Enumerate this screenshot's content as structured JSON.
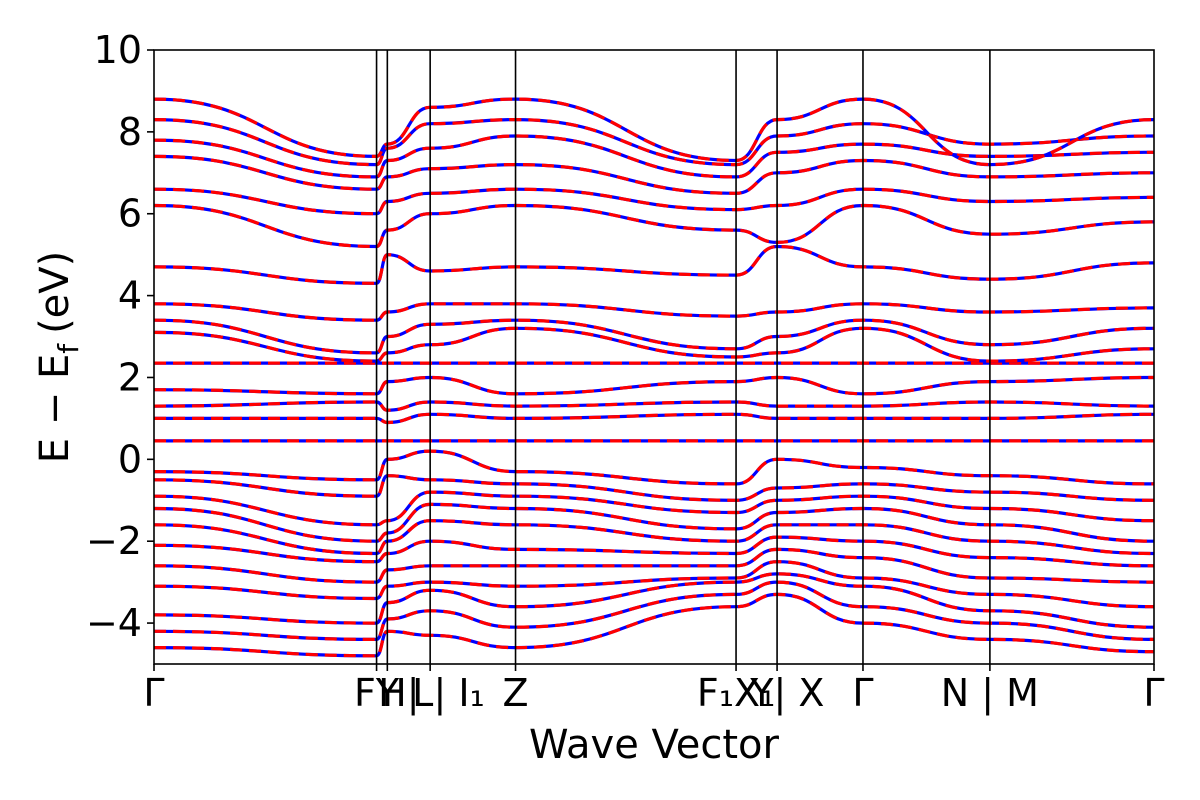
{
  "chart_data": {
    "type": "line",
    "title": "",
    "xlabel": "Wave Vector",
    "ylabel_main": "E − E",
    "ylabel_sub": "f",
    "ylabel_unit": "(eV)",
    "ylim": [
      -5,
      10
    ],
    "yticks": [
      {
        "value": -4,
        "label": "−4"
      },
      {
        "value": -2,
        "label": "−2"
      },
      {
        "value": 0,
        "label": "0"
      },
      {
        "value": 2,
        "label": "2"
      },
      {
        "value": 4,
        "label": "4"
      },
      {
        "value": 6,
        "label": "6"
      },
      {
        "value": 8,
        "label": "8"
      },
      {
        "value": 10,
        "label": "10"
      }
    ],
    "xlim": [
      0,
      3.9
    ],
    "kpoints": [
      {
        "pos": 0.0,
        "label": "Γ"
      },
      {
        "pos": 0.868,
        "label": "F"
      },
      {
        "pos": 0.91,
        "label": "Y"
      },
      {
        "pos": 1.077,
        "label": "H"
      },
      {
        "pos": 1.41,
        "label": "Z"
      },
      {
        "pos": 2.27,
        "label": "F₁"
      },
      {
        "pos": 2.43,
        "label": "Y"
      },
      {
        "pos": 2.765,
        "label": "Γ"
      },
      {
        "pos": 3.26,
        "label": "N"
      },
      {
        "pos": 3.9,
        "label": "Γ"
      }
    ],
    "tick_labels": [
      {
        "pos": 0.0,
        "text": "Γ"
      },
      {
        "pos": 0.868,
        "text": "FY"
      },
      {
        "pos": 0.955,
        "text": "H|"
      },
      {
        "pos": 1.048,
        "text": "L"
      },
      {
        "pos": 1.19,
        "text": "| I₁"
      },
      {
        "pos": 1.41,
        "text": "Z"
      },
      {
        "pos": 2.27,
        "text": "F₁X₁"
      },
      {
        "pos": 2.47,
        "text": "Y| X"
      },
      {
        "pos": 2.765,
        "text": "Γ"
      },
      {
        "pos": 3.26,
        "text": "N | M"
      },
      {
        "pos": 3.9,
        "text": "Γ"
      }
    ],
    "series": [
      {
        "color": "#0000ff",
        "style": "solid"
      },
      {
        "color": "#ff0000",
        "style": "dashed"
      }
    ],
    "bands": [
      [
        -4.6,
        -4.8,
        -4.2,
        -4.3,
        -4.6,
        -3.6,
        -3.3,
        -4.0,
        -4.4,
        -4.7,
        -4.9
      ],
      [
        -4.2,
        -4.4,
        -3.9,
        -3.7,
        -4.1,
        -3.3,
        -3.0,
        -3.6,
        -4.0,
        -4.4,
        -4.5
      ],
      [
        -3.8,
        -4.0,
        -3.5,
        -3.2,
        -3.6,
        -3.0,
        -2.8,
        -3.1,
        -3.7,
        -4.1,
        -4.0
      ],
      [
        -3.1,
        -3.4,
        -3.1,
        -3.0,
        -3.1,
        -2.9,
        -2.5,
        -2.9,
        -3.3,
        -3.6,
        -3.2
      ],
      [
        -2.6,
        -3.0,
        -2.7,
        -2.6,
        -2.6,
        -2.6,
        -2.2,
        -2.4,
        -2.9,
        -3.0,
        -2.6
      ],
      [
        -2.1,
        -2.5,
        -2.3,
        -2.0,
        -2.2,
        -2.3,
        -1.9,
        -2.0,
        -2.4,
        -2.6,
        -2.2
      ],
      [
        -1.6,
        -2.3,
        -2.0,
        -1.5,
        -1.6,
        -2.0,
        -1.6,
        -1.6,
        -2.0,
        -2.3,
        -1.7
      ],
      [
        -1.2,
        -2.0,
        -1.8,
        -1.1,
        -1.2,
        -1.7,
        -1.3,
        -1.2,
        -1.6,
        -2.0,
        -1.2
      ],
      [
        -0.9,
        -1.6,
        -1.5,
        -0.8,
        -0.9,
        -1.3,
        -1.0,
        -0.9,
        -1.2,
        -1.5,
        -0.9
      ],
      [
        -0.5,
        -0.9,
        -0.4,
        -0.5,
        -0.6,
        -1.0,
        -0.7,
        -0.6,
        -0.8,
        -1.0,
        -0.5
      ],
      [
        -0.3,
        -0.5,
        0.0,
        0.2,
        -0.3,
        -0.6,
        0.0,
        -0.2,
        -0.4,
        -0.6,
        -0.3
      ],
      [
        0.45,
        0.45,
        0.45,
        0.45,
        0.45,
        0.45,
        0.45,
        0.45,
        0.45,
        0.45,
        0.45
      ],
      [
        1.0,
        1.0,
        0.9,
        1.1,
        1.0,
        1.1,
        1.0,
        1.0,
        1.0,
        1.1,
        1.0
      ],
      [
        1.3,
        1.4,
        1.2,
        1.4,
        1.3,
        1.4,
        1.3,
        1.3,
        1.4,
        1.3,
        1.3
      ],
      [
        1.7,
        1.6,
        1.9,
        2.0,
        1.6,
        1.9,
        2.0,
        1.6,
        1.9,
        2.0,
        1.7
      ],
      [
        2.35,
        2.35,
        2.35,
        2.35,
        2.35,
        2.35,
        2.35,
        2.35,
        2.35,
        2.35,
        2.35
      ],
      [
        3.1,
        2.4,
        2.6,
        2.8,
        3.2,
        2.5,
        2.6,
        3.2,
        2.4,
        2.7,
        3.1
      ],
      [
        3.4,
        2.6,
        3.0,
        3.3,
        3.4,
        2.7,
        3.0,
        3.4,
        2.8,
        3.2,
        3.4
      ],
      [
        3.8,
        3.4,
        3.6,
        3.8,
        3.8,
        3.5,
        3.6,
        3.8,
        3.6,
        3.7,
        3.8
      ],
      [
        4.7,
        4.3,
        5.0,
        4.6,
        4.7,
        4.5,
        5.2,
        4.7,
        4.4,
        4.8,
        4.7
      ],
      [
        6.2,
        5.2,
        5.6,
        6.0,
        6.2,
        5.6,
        5.3,
        6.2,
        5.5,
        5.8,
        6.2
      ],
      [
        6.6,
        6.0,
        6.3,
        6.5,
        6.6,
        6.1,
        6.2,
        6.6,
        6.3,
        6.4,
        6.6
      ],
      [
        7.4,
        6.6,
        6.9,
        7.1,
        7.2,
        6.5,
        7.0,
        7.3,
        6.9,
        7.0,
        7.4
      ],
      [
        7.8,
        6.9,
        7.3,
        7.6,
        7.9,
        6.9,
        7.5,
        7.7,
        7.4,
        7.5,
        7.8
      ],
      [
        8.3,
        7.2,
        7.6,
        8.2,
        8.3,
        7.2,
        7.9,
        8.2,
        7.7,
        7.9,
        8.3
      ],
      [
        8.8,
        7.4,
        7.7,
        8.6,
        8.8,
        7.3,
        8.3,
        8.8,
        7.2,
        8.3,
        8.8
      ]
    ]
  }
}
